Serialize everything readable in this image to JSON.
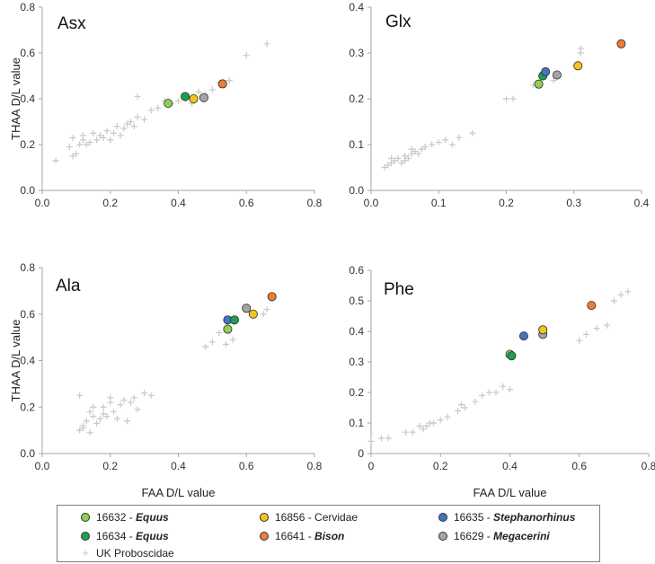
{
  "colors": {
    "uk_proboscidae": "#c8c8c8",
    "axis": "#a6a6a6",
    "marker_edge": "#2b2b2b"
  },
  "legend": {
    "items": [
      {
        "id": "16632",
        "sep": " - ",
        "taxon": "Equus",
        "italic": true,
        "color": "#92d050"
      },
      {
        "id": "16856",
        "sep": " - ",
        "taxon": "Cervidae",
        "italic": false,
        "color": "#f5c518"
      },
      {
        "id": "16635",
        "sep": " - ",
        "taxon": "Stephanorhinus",
        "italic": true,
        "color": "#4472c4"
      },
      {
        "id": "16634",
        "sep": " - ",
        "taxon": "Equus",
        "italic": true,
        "color": "#1fa050"
      },
      {
        "id": "16641",
        "sep": " - ",
        "taxon": "Bison",
        "italic": true,
        "color": "#ed7d31"
      },
      {
        "id": "16629",
        "sep": " - ",
        "taxon": "Megacerini",
        "italic": true,
        "color": "#a5a5a5"
      }
    ],
    "background_label": "UK Proboscidae"
  },
  "chart_data": [
    {
      "type": "scatter",
      "title": "Asx",
      "xlabel": "",
      "ylabel": "THAA D/L value",
      "xlim": [
        0,
        0.8
      ],
      "ylim": [
        0,
        0.8
      ],
      "xticks": [
        "0.0",
        "0.2",
        "0.4",
        "0.6",
        "0.8"
      ],
      "yticks": [
        "0.0",
        "0.2",
        "0.4",
        "0.6",
        "0.8"
      ],
      "background": {
        "name": "UK Proboscidae",
        "points": [
          [
            0.04,
            0.13
          ],
          [
            0.08,
            0.19
          ],
          [
            0.09,
            0.23
          ],
          [
            0.1,
            0.16
          ],
          [
            0.11,
            0.2
          ],
          [
            0.12,
            0.22
          ],
          [
            0.12,
            0.24
          ],
          [
            0.13,
            0.2
          ],
          [
            0.14,
            0.21
          ],
          [
            0.15,
            0.25
          ],
          [
            0.16,
            0.22
          ],
          [
            0.17,
            0.24
          ],
          [
            0.18,
            0.23
          ],
          [
            0.19,
            0.26
          ],
          [
            0.2,
            0.22
          ],
          [
            0.21,
            0.25
          ],
          [
            0.22,
            0.28
          ],
          [
            0.23,
            0.24
          ],
          [
            0.24,
            0.27
          ],
          [
            0.25,
            0.29
          ],
          [
            0.26,
            0.3
          ],
          [
            0.27,
            0.28
          ],
          [
            0.28,
            0.32
          ],
          [
            0.3,
            0.31
          ],
          [
            0.32,
            0.35
          ],
          [
            0.34,
            0.36
          ],
          [
            0.36,
            0.39
          ],
          [
            0.38,
            0.38
          ],
          [
            0.4,
            0.39
          ],
          [
            0.42,
            0.4
          ],
          [
            0.44,
            0.38
          ],
          [
            0.46,
            0.43
          ],
          [
            0.48,
            0.42
          ],
          [
            0.5,
            0.44
          ],
          [
            0.52,
            0.47
          ],
          [
            0.55,
            0.48
          ],
          [
            0.6,
            0.59
          ],
          [
            0.66,
            0.64
          ],
          [
            0.28,
            0.41
          ],
          [
            0.09,
            0.15
          ]
        ]
      },
      "series": [
        {
          "name": "16632 - Equus",
          "x": 0.37,
          "y": 0.38
        },
        {
          "name": "16634 - Equus",
          "x": 0.42,
          "y": 0.41
        },
        {
          "name": "16856 - Cervidae",
          "x": 0.445,
          "y": 0.4
        },
        {
          "name": "16629 - Megacerini",
          "x": 0.475,
          "y": 0.405
        },
        {
          "name": "16641 - Bison",
          "x": 0.53,
          "y": 0.465
        }
      ]
    },
    {
      "type": "scatter",
      "title": "Glx",
      "xlabel": "",
      "ylabel": "",
      "xlim": [
        0,
        0.4
      ],
      "ylim": [
        0,
        0.4
      ],
      "xticks": [
        "0.0",
        "0.1",
        "0.2",
        "0.3",
        "0.4"
      ],
      "yticks": [
        "0.0",
        "0.1",
        "0.2",
        "0.3",
        "0.4"
      ],
      "background": {
        "name": "UK Proboscidae",
        "points": [
          [
            0.02,
            0.05
          ],
          [
            0.025,
            0.055
          ],
          [
            0.03,
            0.06
          ],
          [
            0.035,
            0.065
          ],
          [
            0.04,
            0.07
          ],
          [
            0.045,
            0.06
          ],
          [
            0.05,
            0.075
          ],
          [
            0.055,
            0.07
          ],
          [
            0.06,
            0.08
          ],
          [
            0.065,
            0.085
          ],
          [
            0.07,
            0.08
          ],
          [
            0.075,
            0.09
          ],
          [
            0.08,
            0.095
          ],
          [
            0.09,
            0.1
          ],
          [
            0.1,
            0.105
          ],
          [
            0.11,
            0.11
          ],
          [
            0.12,
            0.1
          ],
          [
            0.13,
            0.115
          ],
          [
            0.15,
            0.125
          ],
          [
            0.2,
            0.2
          ],
          [
            0.21,
            0.2
          ],
          [
            0.24,
            0.23
          ],
          [
            0.27,
            0.24
          ],
          [
            0.31,
            0.3
          ],
          [
            0.31,
            0.31
          ],
          [
            0.03,
            0.07
          ],
          [
            0.05,
            0.065
          ],
          [
            0.06,
            0.09
          ]
        ]
      },
      "series": [
        {
          "name": "16632 - Equus",
          "x": 0.248,
          "y": 0.232
        },
        {
          "name": "16634 - Equus",
          "x": 0.254,
          "y": 0.25
        },
        {
          "name": "16635 - Stephanorhinus",
          "x": 0.258,
          "y": 0.259
        },
        {
          "name": "16629 - Megacerini",
          "x": 0.275,
          "y": 0.252
        },
        {
          "name": "16856 - Cervidae",
          "x": 0.306,
          "y": 0.272
        },
        {
          "name": "16641 - Bison",
          "x": 0.37,
          "y": 0.32
        }
      ]
    },
    {
      "type": "scatter",
      "title": "Ala",
      "xlabel": "FAA D/L value",
      "ylabel": "THAA D/L value",
      "xlim": [
        0,
        0.8
      ],
      "ylim": [
        0,
        0.8
      ],
      "xticks": [
        "0.0",
        "0.2",
        "0.4",
        "0.6",
        "0.8"
      ],
      "yticks": [
        "0.0",
        "0.2",
        "0.4",
        "0.6",
        "0.8"
      ],
      "background": {
        "name": "UK Proboscidae",
        "points": [
          [
            0.11,
            0.25
          ],
          [
            0.11,
            0.1
          ],
          [
            0.12,
            0.11
          ],
          [
            0.13,
            0.14
          ],
          [
            0.14,
            0.18
          ],
          [
            0.15,
            0.2
          ],
          [
            0.16,
            0.13
          ],
          [
            0.17,
            0.15
          ],
          [
            0.18,
            0.17
          ],
          [
            0.18,
            0.2
          ],
          [
            0.19,
            0.16
          ],
          [
            0.2,
            0.22
          ],
          [
            0.21,
            0.18
          ],
          [
            0.22,
            0.15
          ],
          [
            0.23,
            0.21
          ],
          [
            0.24,
            0.23
          ],
          [
            0.25,
            0.14
          ],
          [
            0.26,
            0.22
          ],
          [
            0.27,
            0.24
          ],
          [
            0.28,
            0.19
          ],
          [
            0.3,
            0.26
          ],
          [
            0.32,
            0.25
          ],
          [
            0.12,
            0.12
          ],
          [
            0.14,
            0.09
          ],
          [
            0.2,
            0.24
          ],
          [
            0.48,
            0.46
          ],
          [
            0.5,
            0.48
          ],
          [
            0.52,
            0.52
          ],
          [
            0.54,
            0.47
          ],
          [
            0.56,
            0.49
          ],
          [
            0.65,
            0.6
          ],
          [
            0.66,
            0.62
          ],
          [
            0.15,
            0.16
          ]
        ]
      },
      "series": [
        {
          "name": "16632 - Equus",
          "x": 0.545,
          "y": 0.535
        },
        {
          "name": "16635 - Stephanorhinus",
          "x": 0.545,
          "y": 0.575
        },
        {
          "name": "16634 - Equus",
          "x": 0.565,
          "y": 0.575
        },
        {
          "name": "16629 - Megacerini",
          "x": 0.6,
          "y": 0.625
        },
        {
          "name": "16856 - Cervidae",
          "x": 0.62,
          "y": 0.6
        },
        {
          "name": "16641 - Bison",
          "x": 0.675,
          "y": 0.675
        }
      ]
    },
    {
      "type": "scatter",
      "title": "Phe",
      "xlabel": "FAA D/L value",
      "ylabel": "",
      "xlim": [
        0,
        0.8
      ],
      "ylim": [
        0,
        0.6
      ],
      "xticks": [
        "0",
        "0.2",
        "0.4",
        "0.6",
        "0.8"
      ],
      "yticks": [
        "0",
        "0.1",
        "0.2",
        "0.3",
        "0.4",
        "0.5",
        "0.6"
      ],
      "background": {
        "name": "UK Proboscidae",
        "points": [
          [
            0.0,
            0.04
          ],
          [
            0.03,
            0.05
          ],
          [
            0.05,
            0.05
          ],
          [
            0.1,
            0.07
          ],
          [
            0.12,
            0.07
          ],
          [
            0.14,
            0.09
          ],
          [
            0.16,
            0.09
          ],
          [
            0.17,
            0.1
          ],
          [
            0.18,
            0.1
          ],
          [
            0.2,
            0.11
          ],
          [
            0.22,
            0.12
          ],
          [
            0.25,
            0.14
          ],
          [
            0.27,
            0.15
          ],
          [
            0.3,
            0.17
          ],
          [
            0.32,
            0.19
          ],
          [
            0.34,
            0.2
          ],
          [
            0.36,
            0.2
          ],
          [
            0.38,
            0.22
          ],
          [
            0.4,
            0.21
          ],
          [
            0.6,
            0.37
          ],
          [
            0.62,
            0.39
          ],
          [
            0.65,
            0.41
          ],
          [
            0.68,
            0.42
          ],
          [
            0.7,
            0.5
          ],
          [
            0.72,
            0.52
          ],
          [
            0.74,
            0.53
          ],
          [
            0.15,
            0.08
          ],
          [
            0.26,
            0.16
          ]
        ]
      },
      "series": [
        {
          "name": "16632 - Equus",
          "x": 0.4,
          "y": 0.325
        },
        {
          "name": "16634 - Equus",
          "x": 0.405,
          "y": 0.32
        },
        {
          "name": "16635 - Stephanorhinus",
          "x": 0.44,
          "y": 0.385
        },
        {
          "name": "16629 - Megacerini",
          "x": 0.495,
          "y": 0.39
        },
        {
          "name": "16856 - Cervidae",
          "x": 0.495,
          "y": 0.405
        },
        {
          "name": "16641 - Bison",
          "x": 0.635,
          "y": 0.485
        }
      ]
    }
  ]
}
